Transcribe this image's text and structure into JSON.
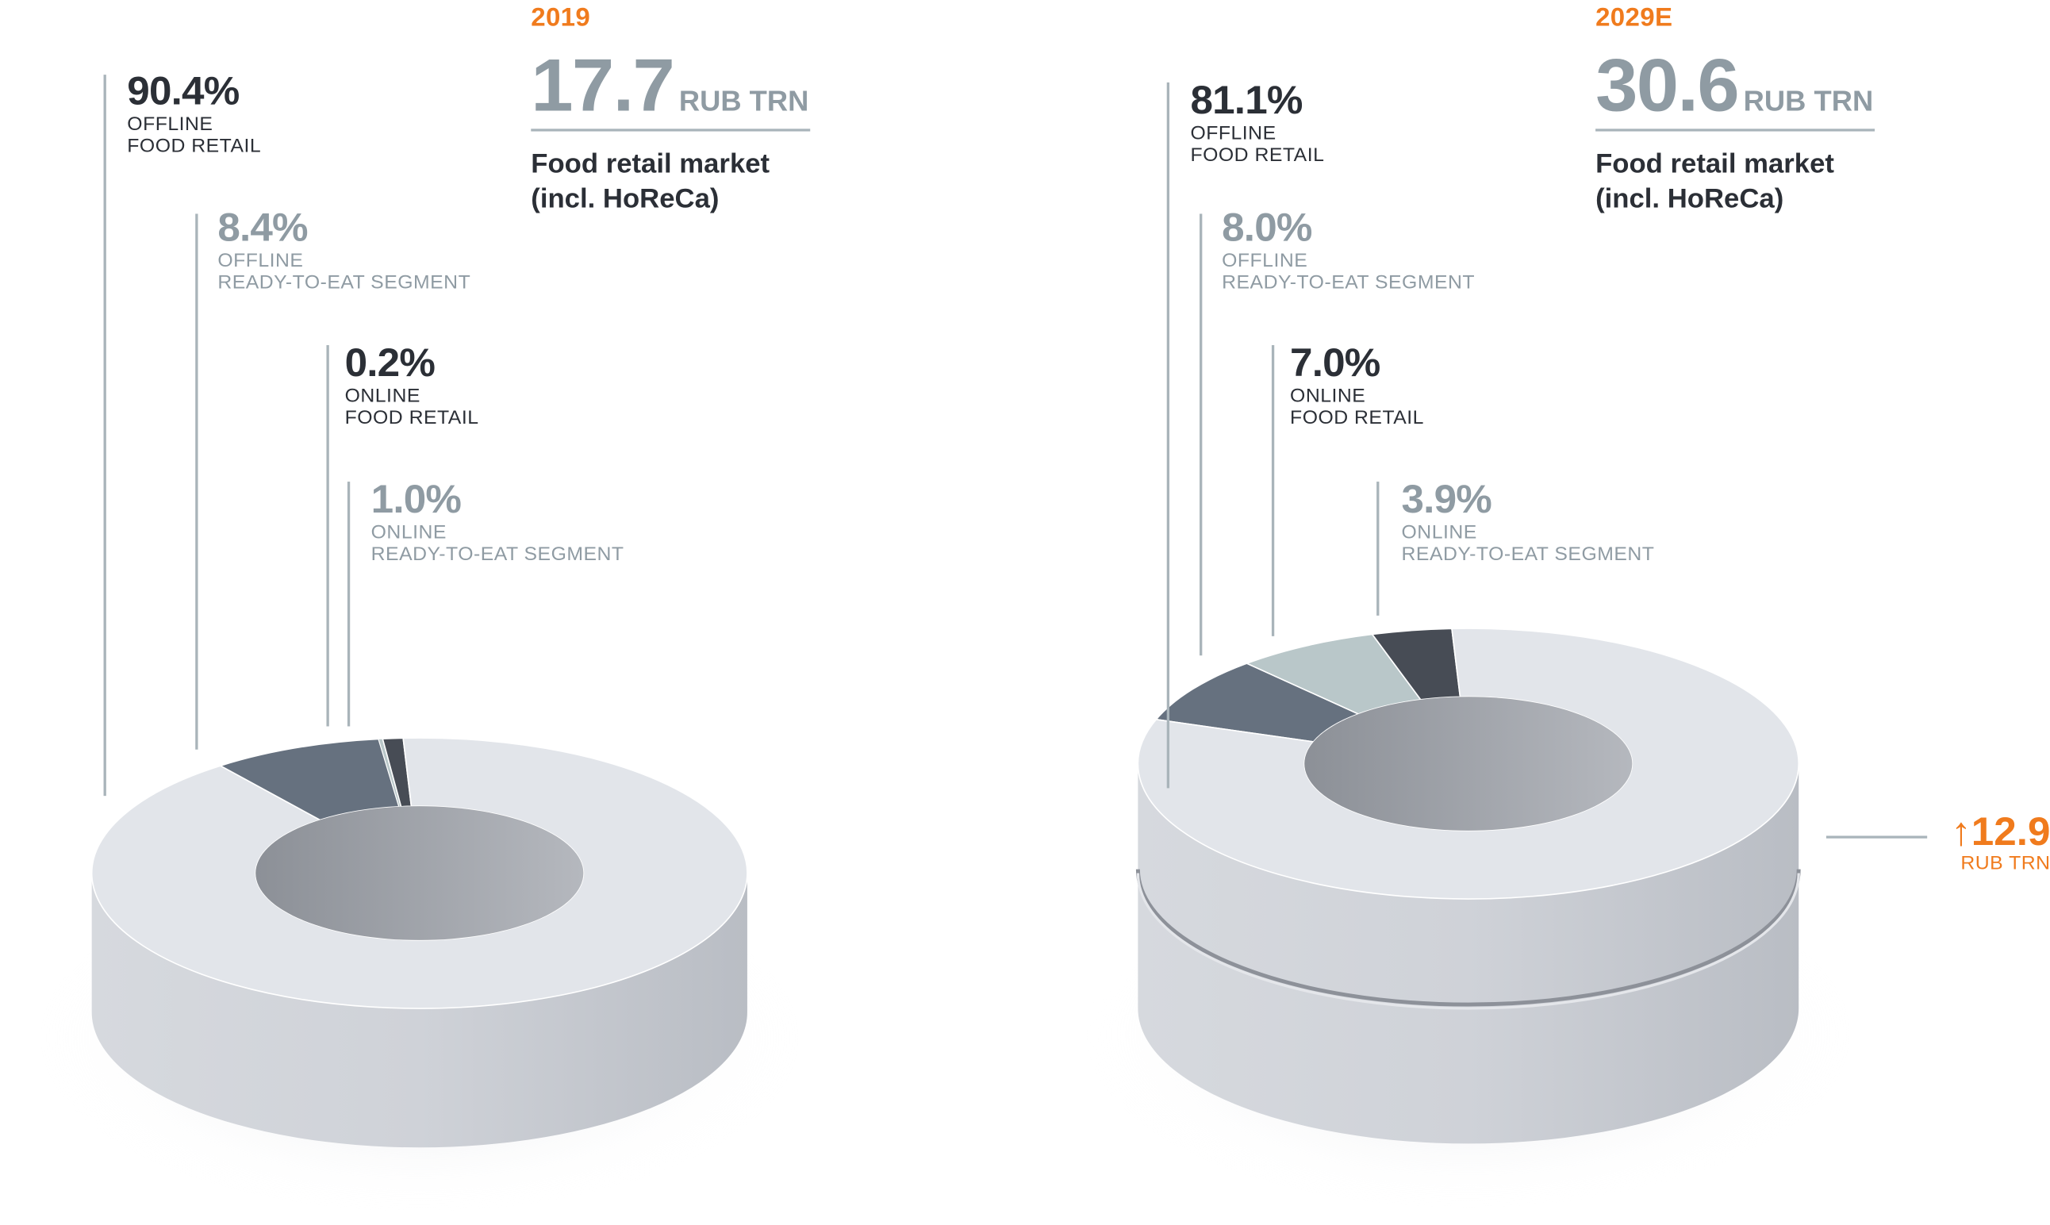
{
  "chart_data": [
    {
      "type": "pie",
      "year": "2019",
      "total_value": "17.7",
      "total_unit": "RUB TRN",
      "title_line1": "Food retail market",
      "title_line2": "(incl. HoReCa)",
      "slices": [
        {
          "pct_label": "90.4%",
          "value": 90.4,
          "label_line1": "OFFLINE",
          "label_line2": "FOOD RETAIL",
          "color": "#e2e5ea"
        },
        {
          "pct_label": "8.4%",
          "value": 8.4,
          "label_line1": "OFFLINE",
          "label_line2": "READY-TO-EAT SEGMENT",
          "color": "#66717f"
        },
        {
          "pct_label": "0.2%",
          "value": 0.2,
          "label_line1": "ONLINE",
          "label_line2": "FOOD RETAIL",
          "color": "#b9c7c9"
        },
        {
          "pct_label": "1.0%",
          "value": 1.0,
          "label_line1": "ONLINE",
          "label_line2": "READY-TO-EAT SEGMENT",
          "color": "#474c55"
        }
      ]
    },
    {
      "type": "pie",
      "year": "2029E",
      "total_value": "30.6",
      "total_unit": "RUB TRN",
      "title_line1": "Food retail market",
      "title_line2": "(incl. HoReCa)",
      "slices": [
        {
          "pct_label": "81.1%",
          "value": 81.1,
          "label_line1": "OFFLINE",
          "label_line2": "FOOD RETAIL",
          "color": "#e2e5ea"
        },
        {
          "pct_label": "8.0%",
          "value": 8.0,
          "label_line1": "OFFLINE",
          "label_line2": "READY-TO-EAT SEGMENT",
          "color": "#66717f"
        },
        {
          "pct_label": "7.0%",
          "value": 7.0,
          "label_line1": "ONLINE",
          "label_line2": "FOOD RETAIL",
          "color": "#b9c7c9"
        },
        {
          "pct_label": "3.9%",
          "value": 3.9,
          "label_line1": "ONLINE",
          "label_line2": "READY-TO-EAT SEGMENT",
          "color": "#474c55"
        }
      ],
      "growth": {
        "value": "12.9",
        "unit": "RUB TRN",
        "arrow": "up-arrow"
      }
    }
  ],
  "colors": {
    "accent": "#f07b1d",
    "dark_text": "#2b2f36",
    "muted_text": "#8f9ba3",
    "side": "#c9ccd2"
  }
}
